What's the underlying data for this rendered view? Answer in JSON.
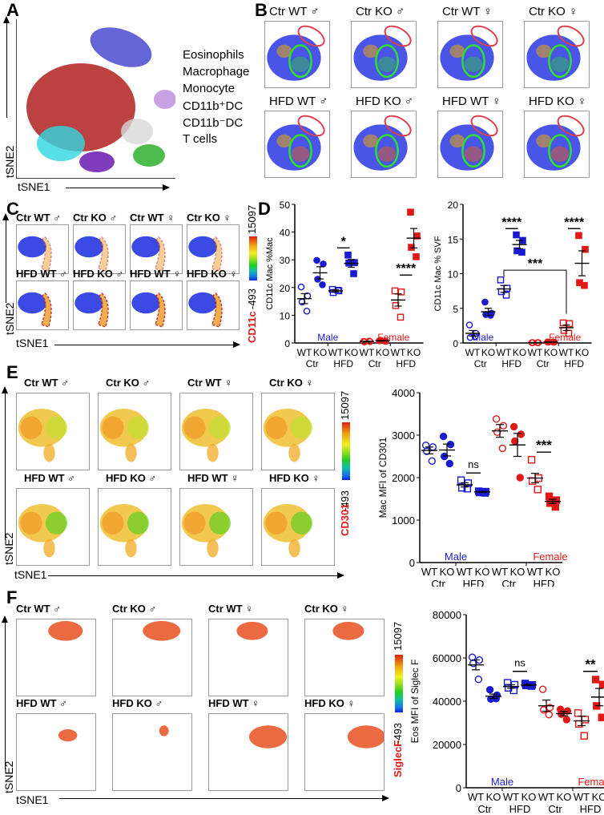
{
  "panels": {
    "A": {
      "label": "A",
      "xlabel": "tSNE1",
      "ylabel": "tSNE2",
      "legend": [
        {
          "label": "Eosinophils",
          "color": "#4a4ad0"
        },
        {
          "label": "Macrophage",
          "color": "#b02020"
        },
        {
          "label": "Monocyte",
          "color": "#30d8e0"
        },
        {
          "label": "CD11b⁺DC",
          "color": "#6a1ab0"
        },
        {
          "label": "CD11b⁻DC",
          "color": "#c090e0"
        },
        {
          "label": "T cells",
          "color": "#30b030"
        }
      ]
    },
    "B": {
      "label": "B",
      "titles": [
        "Ctr WT ♂",
        "Ctr KO ♂",
        "Ctr WT ♀",
        "Ctr KO ♀",
        "HFD WT ♂",
        "HFD KO ♂",
        "HFD WT ♀",
        "HFD KO ♀"
      ]
    },
    "C": {
      "label": "C",
      "titles": [
        "Ctr WT ♂",
        "Ctr KO ♂",
        "Ctr WT ♀",
        "Ctr KO ♀",
        "HFD WT ♂",
        "HFD KO ♂",
        "HFD WT ♀",
        "HFD KO ♀"
      ],
      "xlabel": "tSNE1",
      "ylabel": "tSNE2",
      "colorbar": {
        "marker": "CD11c",
        "min": "-493",
        "max": "15097"
      }
    },
    "D": {
      "label": "D"
    },
    "E": {
      "label": "E",
      "titles": [
        "Ctr WT ♂",
        "Ctr KO ♂",
        "Ctr WT ♀",
        "Ctr KO ♀",
        "HFD WT ♂",
        "HFD KO ♂",
        "HFD WT ♀",
        "HFD KO ♀"
      ],
      "xlabel": "tSNE1",
      "ylabel": "tSNE2",
      "colorbar": {
        "marker": "CD301",
        "min": "-493",
        "max": "15097"
      }
    },
    "F": {
      "label": "F",
      "titles": [
        "Ctr WT ♂",
        "Ctr KO ♂",
        "Ctr WT ♀",
        "Ctr KO ♀",
        "HFD WT ♂",
        "HFD KO ♂",
        "HFD WT ♀",
        "HFD KO ♀"
      ],
      "xlabel": "tSNE1",
      "ylabel": "tSNE2",
      "colorbar": {
        "marker": "SiglecF",
        "min": "-493",
        "max": "15097"
      }
    }
  },
  "colors": {
    "male": "#1a1ad0",
    "female": "#e01818",
    "mean_bar": "#000000"
  },
  "chart_data": [
    {
      "id": "D-left",
      "type": "scatter",
      "ylabel": "CD11c Mac  %Mac",
      "ylim": [
        0,
        50
      ],
      "yticks": [
        0,
        10,
        20,
        30,
        40,
        50
      ],
      "categories": [
        "WT",
        "KO",
        "WT",
        "KO",
        "WT",
        "KO",
        "WT",
        "KO"
      ],
      "group_labels": [
        "Ctr",
        "HFD",
        "Ctr",
        "HFD"
      ],
      "sex_labels": [
        "Male",
        "Female"
      ],
      "series": [
        {
          "name": "Male Ctr WT",
          "sex": "male",
          "marker": "open-circle",
          "values": [
            20.2,
            17,
            14.8,
            11.5
          ],
          "mean": 16,
          "sem": 1.8
        },
        {
          "name": "Male Ctr KO",
          "sex": "male",
          "marker": "filled-circle",
          "values": [
            29.8,
            28.5,
            23,
            21
          ],
          "mean": 25.3,
          "sem": 2.2
        },
        {
          "name": "Male HFD WT",
          "sex": "male",
          "marker": "open-square",
          "values": [
            19.3,
            18.8,
            18.2,
            19
          ],
          "mean": 18.8,
          "sem": 0.4
        },
        {
          "name": "Male HFD KO",
          "sex": "male",
          "marker": "filled-square",
          "values": [
            31.7,
            29,
            28.8,
            25
          ],
          "mean": 28.7,
          "sem": 1.4
        },
        {
          "name": "Female Ctr WT",
          "sex": "female",
          "marker": "open-circle",
          "values": [
            0.6,
            0.5,
            0.4,
            0.7
          ],
          "mean": 0.55,
          "sem": 0.1
        },
        {
          "name": "Female Ctr KO",
          "sex": "female",
          "marker": "filled-circle",
          "values": [
            0.8,
            0.6,
            1.0,
            0.7
          ],
          "mean": 0.8,
          "sem": 0.1
        },
        {
          "name": "Female HFD WT",
          "sex": "female",
          "marker": "open-square",
          "values": [
            18.8,
            18.4,
            13.5,
            9.3
          ],
          "mean": 15.5,
          "sem": 2.2
        },
        {
          "name": "Female HFD KO",
          "sex": "female",
          "marker": "filled-square",
          "values": [
            47.2,
            38.6,
            34.5,
            31.1
          ],
          "mean": 37.8,
          "sem": 3.5
        }
      ],
      "significance": [
        {
          "between": [
            2,
            3
          ],
          "label": "*",
          "y": 34.3
        },
        {
          "between": [
            6,
            7
          ],
          "label": "****",
          "y": 24.5
        }
      ]
    },
    {
      "id": "D-right",
      "type": "scatter",
      "ylabel": "CD11c Mac % SVF",
      "ylim": [
        0,
        20
      ],
      "yticks": [
        0,
        5,
        10,
        15,
        20
      ],
      "categories": [
        "WT",
        "KO",
        "WT",
        "KO",
        "WT",
        "KO",
        "WT",
        "KO"
      ],
      "group_labels": [
        "Ctr",
        "HFD",
        "Ctr",
        "HFD"
      ],
      "sex_labels": [
        "Male",
        "Female"
      ],
      "series": [
        {
          "name": "Male Ctr WT",
          "sex": "male",
          "marker": "open-circle",
          "values": [
            2.6,
            1.4,
            0.8,
            0.9
          ],
          "mean": 1.4,
          "sem": 0.4
        },
        {
          "name": "Male Ctr KO",
          "sex": "male",
          "marker": "filled-circle",
          "values": [
            5.9,
            4.3,
            4.1,
            4.0
          ],
          "mean": 4.5,
          "sem": 0.5
        },
        {
          "name": "Male HFD WT",
          "sex": "male",
          "marker": "open-square",
          "values": [
            9.1,
            7.9,
            7.4,
            6.9
          ],
          "mean": 7.8,
          "sem": 0.5
        },
        {
          "name": "Male HFD KO",
          "sex": "male",
          "marker": "filled-square",
          "values": [
            15.6,
            14.8,
            13.3,
            13.1
          ],
          "mean": 14.2,
          "sem": 0.6
        },
        {
          "name": "Female Ctr WT",
          "sex": "female",
          "marker": "open-circle",
          "values": [
            0.05,
            0.05,
            0.05,
            0.05
          ],
          "mean": 0.05,
          "sem": 0.02
        },
        {
          "name": "Female Ctr KO",
          "sex": "female",
          "marker": "filled-circle",
          "values": [
            0.15,
            0.1,
            0.12,
            0.15
          ],
          "mean": 0.13,
          "sem": 0.02
        },
        {
          "name": "Female HFD WT",
          "sex": "female",
          "marker": "open-square",
          "values": [
            2.9,
            2.8,
            1.8,
            1.4
          ],
          "mean": 2.2,
          "sem": 0.4
        },
        {
          "name": "Female HFD KO",
          "sex": "female",
          "marker": "filled-square",
          "values": [
            15.5,
            13.5,
            8.7,
            8.3
          ],
          "mean": 11.5,
          "sem": 1.8
        }
      ],
      "significance": [
        {
          "between": [
            2,
            3
          ],
          "label": "****",
          "y": 16.5
        },
        {
          "between": [
            6,
            7
          ],
          "label": "****",
          "y": 16.5
        },
        {
          "between": [
            2,
            6
          ],
          "label": "***",
          "y": 10.5,
          "bracket": true,
          "drop_to": 4.2
        }
      ]
    },
    {
      "id": "E-right",
      "type": "scatter",
      "ylabel": "Mac  MFI of CD301",
      "ylim": [
        0,
        4000
      ],
      "yticks": [
        0,
        1000,
        2000,
        3000,
        4000
      ],
      "categories": [
        "WT",
        "KO",
        "WT",
        "KO",
        "WT",
        "KO",
        "WT",
        "KO"
      ],
      "group_labels": [
        "Ctr",
        "HFD",
        "Ctr",
        "HFD"
      ],
      "sex_labels": [
        "Male",
        "Female"
      ],
      "series": [
        {
          "name": "Male Ctr WT",
          "sex": "male",
          "marker": "open-circle",
          "values": [
            2760,
            2720,
            2620,
            2390
          ],
          "mean": 2640,
          "sem": 80
        },
        {
          "name": "Male Ctr KO",
          "sex": "male",
          "marker": "filled-circle",
          "values": [
            2970,
            2780,
            2500,
            2330
          ],
          "mean": 2650,
          "sem": 140
        },
        {
          "name": "Male HFD WT",
          "sex": "male",
          "marker": "open-square",
          "values": [
            1940,
            1870,
            1760,
            1740
          ],
          "mean": 1830,
          "sem": 50
        },
        {
          "name": "Male HFD KO",
          "sex": "male",
          "marker": "filled-square",
          "values": [
            1680,
            1670,
            1650,
            1640
          ],
          "mean": 1665,
          "sem": 10
        },
        {
          "name": "Female Ctr WT",
          "sex": "female",
          "marker": "open-circle",
          "values": [
            3380,
            3220,
            3070,
            2690
          ],
          "mean": 3100,
          "sem": 150
        },
        {
          "name": "Female Ctr KO",
          "sex": "female",
          "marker": "filled-circle",
          "values": [
            3200,
            3020,
            2860,
            2000
          ],
          "mean": 2770,
          "sem": 270
        },
        {
          "name": "Female HFD WT",
          "sex": "female",
          "marker": "open-square",
          "values": [
            2420,
            1990,
            1920,
            1720
          ],
          "mean": 1990,
          "sem": 110
        },
        {
          "name": "Female HFD KO",
          "sex": "female",
          "marker": "filled-square",
          "values": [
            1560,
            1470,
            1400,
            1310
          ],
          "mean": 1440,
          "sem": 50
        }
      ],
      "significance": [
        {
          "between": [
            2,
            3
          ],
          "label": "ns",
          "y": 2110
        },
        {
          "between": [
            6,
            7
          ],
          "label": "***",
          "y": 2600
        }
      ]
    },
    {
      "id": "F-right",
      "type": "scatter",
      "ylabel": "Eos  MFI of  Siglec F",
      "ylim": [
        0,
        80000
      ],
      "yticks": [
        0,
        20000,
        40000,
        60000,
        80000
      ],
      "categories": [
        "WT",
        "KO",
        "WT",
        "KO",
        "WT",
        "KO",
        "WT",
        "KO"
      ],
      "group_labels": [
        "Ctr",
        "HFD",
        "Ctr",
        "HFD"
      ],
      "sex_labels": [
        "Male",
        "Female"
      ],
      "series": [
        {
          "name": "Male Ctr WT",
          "sex": "male",
          "marker": "open-circle",
          "values": [
            60300,
            59000,
            57500,
            50100
          ],
          "mean": 56800,
          "sem": 2300
        },
        {
          "name": "Male Ctr KO",
          "sex": "male",
          "marker": "filled-circle",
          "values": [
            45300,
            42800,
            41000,
            41200
          ],
          "mean": 42300,
          "sem": 1000
        },
        {
          "name": "Male HFD WT",
          "sex": "male",
          "marker": "open-square",
          "values": [
            48500,
            47600,
            46200,
            45000
          ],
          "mean": 46800,
          "sem": 800
        },
        {
          "name": "Male HFD KO",
          "sex": "male",
          "marker": "filled-square",
          "values": [
            48200,
            47500,
            47300,
            47000
          ],
          "mean": 47500,
          "sem": 300
        },
        {
          "name": "Female Ctr WT",
          "sex": "female",
          "marker": "open-circle",
          "values": [
            45500,
            37000,
            36000,
            33800
          ],
          "mean": 37900,
          "sem": 2600
        },
        {
          "name": "Female Ctr KO",
          "sex": "female",
          "marker": "filled-circle",
          "values": [
            36200,
            35500,
            34000,
            31500
          ],
          "mean": 34300,
          "sem": 1000
        },
        {
          "name": "Female HFD WT",
          "sex": "female",
          "marker": "open-square",
          "values": [
            34500,
            31500,
            29500,
            24000
          ],
          "mean": 30900,
          "sem": 2200
        },
        {
          "name": "Female HFD KO",
          "sex": "female",
          "marker": "filled-square",
          "values": [
            50000,
            47700,
            37800,
            32500
          ],
          "mean": 41900,
          "sem": 4000
        }
      ],
      "significance": [
        {
          "between": [
            2,
            3
          ],
          "label": "ns",
          "y": 53800
        },
        {
          "between": [
            6,
            7
          ],
          "label": "**",
          "y": 53800
        }
      ]
    }
  ]
}
